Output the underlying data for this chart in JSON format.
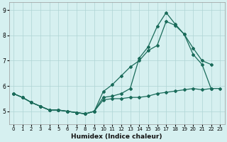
{
  "xlabel": "Humidex (Indice chaleur)",
  "background_color": "#d6f0f0",
  "grid_color": "#aed4d4",
  "line_color": "#1a6b5a",
  "xlim": [
    -0.5,
    23.5
  ],
  "ylim": [
    4.5,
    9.3
  ],
  "xticks": [
    0,
    1,
    2,
    3,
    4,
    5,
    6,
    7,
    8,
    9,
    10,
    11,
    12,
    13,
    14,
    15,
    16,
    17,
    18,
    19,
    20,
    21,
    22,
    23
  ],
  "yticks": [
    5,
    6,
    7,
    8,
    9
  ],
  "line1_x": [
    0,
    1,
    2,
    3,
    4,
    5,
    6,
    7,
    8,
    9,
    10,
    11,
    12,
    13,
    14,
    15,
    16,
    17,
    18,
    19,
    20,
    21,
    22,
    23
  ],
  "line1_y": [
    5.7,
    5.55,
    5.35,
    5.2,
    5.05,
    5.05,
    5.0,
    4.95,
    4.9,
    5.0,
    5.45,
    5.5,
    5.5,
    5.55,
    5.55,
    5.6,
    5.7,
    5.75,
    5.8,
    5.85,
    5.9,
    5.85,
    5.9,
    5.9
  ],
  "line2_x": [
    0,
    1,
    2,
    3,
    4,
    5,
    6,
    7,
    8,
    9,
    10,
    11,
    12,
    13,
    14,
    15,
    16,
    17,
    18,
    19,
    20,
    21,
    22
  ],
  "line2_y": [
    5.7,
    5.55,
    5.35,
    5.2,
    5.05,
    5.05,
    5.0,
    4.95,
    4.9,
    5.0,
    5.78,
    6.05,
    6.4,
    6.75,
    7.0,
    7.4,
    7.6,
    8.55,
    8.4,
    8.05,
    7.25,
    6.85,
    5.9
  ],
  "line3_x": [
    0,
    1,
    2,
    3,
    4,
    5,
    6,
    7,
    8,
    9,
    10,
    11,
    12,
    13,
    14,
    15,
    16,
    17,
    18,
    19,
    20,
    21,
    22
  ],
  "line3_y": [
    5.7,
    5.55,
    5.35,
    5.2,
    5.05,
    5.05,
    5.0,
    4.95,
    4.9,
    5.0,
    5.55,
    5.6,
    5.7,
    5.9,
    7.1,
    7.55,
    8.35,
    8.9,
    8.45,
    8.05,
    7.5,
    7.0,
    6.85
  ]
}
